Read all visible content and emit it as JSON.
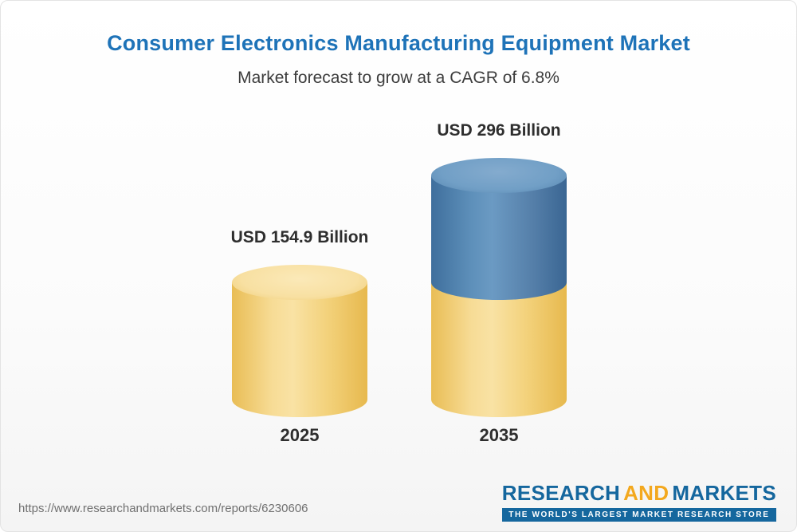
{
  "chart_data": {
    "type": "bar",
    "title": "Consumer Electronics Manufacturing Equipment Market",
    "subtitle": "Market forecast to grow at a CAGR of 6.8%",
    "cagr_percent": 6.8,
    "unit": "USD Billion",
    "categories": [
      "2025",
      "2035"
    ],
    "values": [
      154.9,
      296
    ],
    "ylim": [
      0,
      310
    ],
    "grid": false,
    "legend": false,
    "bars": [
      {
        "category": "2025",
        "total": 154.9,
        "value_label": "USD 154.9 Billion",
        "segments": [
          {
            "name": "base",
            "value": 154.9,
            "color": "yellow"
          }
        ]
      },
      {
        "category": "2035",
        "total": 296,
        "value_label": "USD 296 Billion",
        "segments": [
          {
            "name": "base",
            "value": 154.9,
            "color": "yellow"
          },
          {
            "name": "growth",
            "value": 141.1,
            "color": "blue"
          }
        ]
      }
    ],
    "colors": {
      "title_blue": "#1e73b8",
      "yellow_body": "#f3d07a",
      "yellow_top": "#f8e0a2",
      "blue_body": "#4b80ae",
      "blue_top": "#719fc6",
      "label_text": "#2e2e2e"
    }
  },
  "footer": {
    "url": "https://www.researchandmarkets.com/reports/6230606",
    "logo": {
      "research": "RESEARCH",
      "and": "AND",
      "markets": "MARKETS",
      "tagline": "THE WORLD'S LARGEST MARKET RESEARCH STORE"
    }
  }
}
